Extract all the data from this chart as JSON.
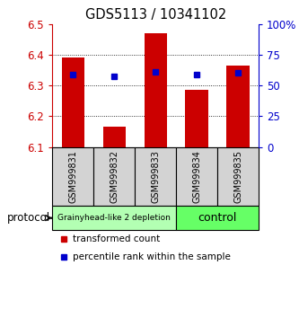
{
  "title": "GDS5113 / 10341102",
  "samples": [
    "GSM999831",
    "GSM999832",
    "GSM999833",
    "GSM999834",
    "GSM999835"
  ],
  "bar_bottoms": [
    6.1,
    6.1,
    6.1,
    6.1,
    6.1
  ],
  "bar_tops": [
    6.39,
    6.165,
    6.47,
    6.285,
    6.365
  ],
  "percentile_values": [
    6.335,
    6.33,
    6.345,
    6.335,
    6.34
  ],
  "ylim": [
    6.1,
    6.5
  ],
  "yticks": [
    6.1,
    6.2,
    6.3,
    6.4,
    6.5
  ],
  "y2ticks": [
    0,
    25,
    50,
    75,
    100
  ],
  "y2labels": [
    "0",
    "25",
    "50",
    "75",
    "100%"
  ],
  "bar_color": "#cc0000",
  "percentile_color": "#0000cc",
  "label_bg": "#d3d3d3",
  "group1_color": "#b3ffb3",
  "group2_color": "#66ff66",
  "group1_label": "Grainyhead-like 2 depletion",
  "group2_label": "control",
  "group1_samples": [
    0,
    1,
    2
  ],
  "group2_samples": [
    3,
    4
  ],
  "protocol_label": "protocol",
  "legend_red": "transformed count",
  "legend_blue": "percentile rank within the sample",
  "left_color": "#cc0000",
  "right_color": "#0000cc",
  "bar_width": 0.55,
  "gridline_color": "black",
  "gridline_lw": 0.6,
  "gridline_style": "dotted"
}
